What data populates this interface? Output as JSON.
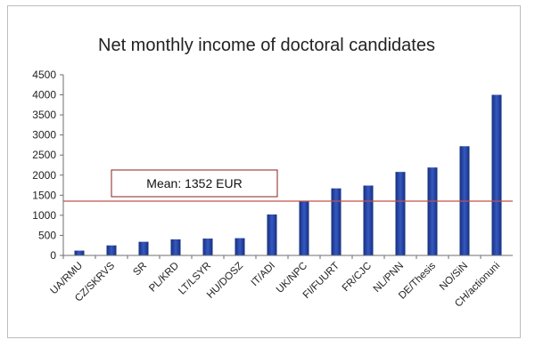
{
  "chart_data": {
    "type": "bar",
    "title": "Net monthly income of doctoral candidates",
    "xlabel": "",
    "ylabel": "",
    "ylim": [
      0,
      4500
    ],
    "yticks": [
      0,
      500,
      1000,
      1500,
      2000,
      2500,
      3000,
      3500,
      4000,
      4500
    ],
    "grid": false,
    "categories": [
      "UA/RMU",
      "CZ/SKRVS",
      "SR",
      "PL/KRD",
      "LT/LSYR",
      "HU/DOSZ",
      "IT/ADI",
      "UK/NPC",
      "FI/FUURT",
      "FR/CJC",
      "NL/PNN",
      "DE/Thesis",
      "NO/SiN",
      "CH/actionuni"
    ],
    "values": [
      120,
      250,
      340,
      400,
      420,
      430,
      1020,
      1350,
      1670,
      1740,
      2080,
      2190,
      2720,
      4000
    ],
    "mean": {
      "value": 1352,
      "label": "Mean: 1352 EUR"
    },
    "colors": {
      "bar": "#1f3f93",
      "bar_light": "#4a6ad0",
      "mean_line": "#c0504d",
      "axis": "#6e6e6e"
    }
  }
}
